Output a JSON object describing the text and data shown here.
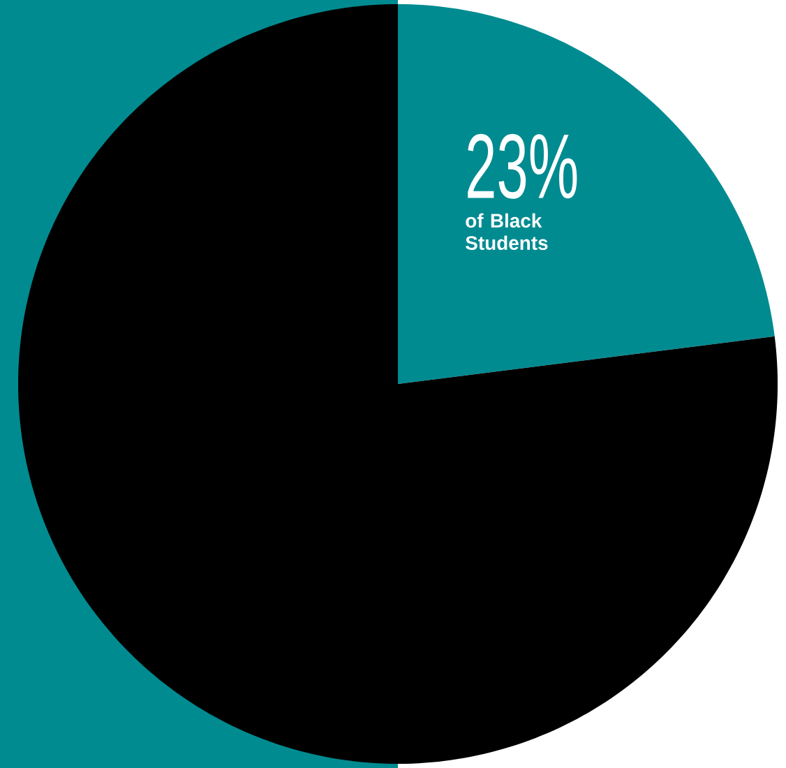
{
  "chart_data": {
    "type": "pie",
    "categories": [
      "of Black Students",
      null
    ],
    "values": [
      23,
      77
    ],
    "colors": [
      "#008b91",
      "#000000"
    ],
    "value_labels": [
      "23%",
      null
    ]
  }
}
